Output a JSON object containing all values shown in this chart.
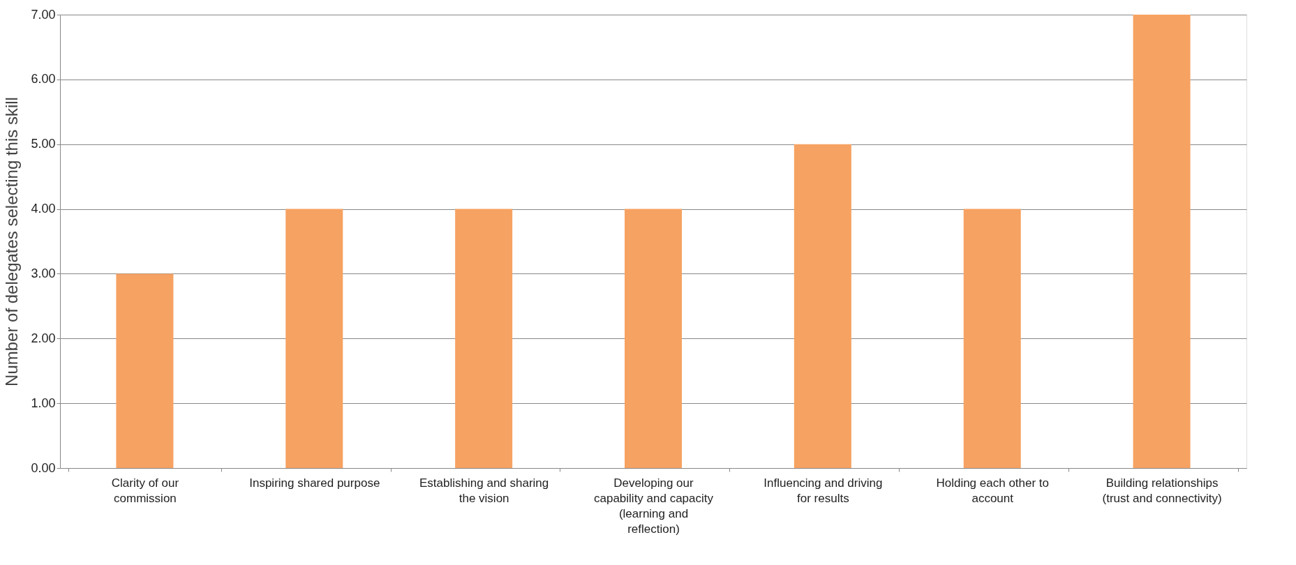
{
  "chart_data": {
    "type": "bar",
    "ylabel": "Number of delegates selecting this skill",
    "categories": [
      "Clarity of our commission",
      "Inspiring shared purpose",
      "Establishing and sharing the vision",
      "Developing our capability and capacity (learning and reflection)",
      "Influencing and driving for results",
      "Holding each other to account",
      "Building relationships (trust and connectivity)"
    ],
    "values": [
      3,
      4,
      4,
      4,
      5,
      4,
      7
    ],
    "color": "#f6a262",
    "ylim": [
      0,
      7
    ],
    "yticks": [
      {
        "value": 0,
        "label": "0.00"
      },
      {
        "value": 1,
        "label": "1.00"
      },
      {
        "value": 2,
        "label": "2.00"
      },
      {
        "value": 3,
        "label": "3.00"
      },
      {
        "value": 4,
        "label": "4.00"
      },
      {
        "value": 5,
        "label": "5.00"
      },
      {
        "value": 6,
        "label": "6.00"
      },
      {
        "value": 7,
        "label": "7.00"
      }
    ],
    "grid": "y"
  }
}
